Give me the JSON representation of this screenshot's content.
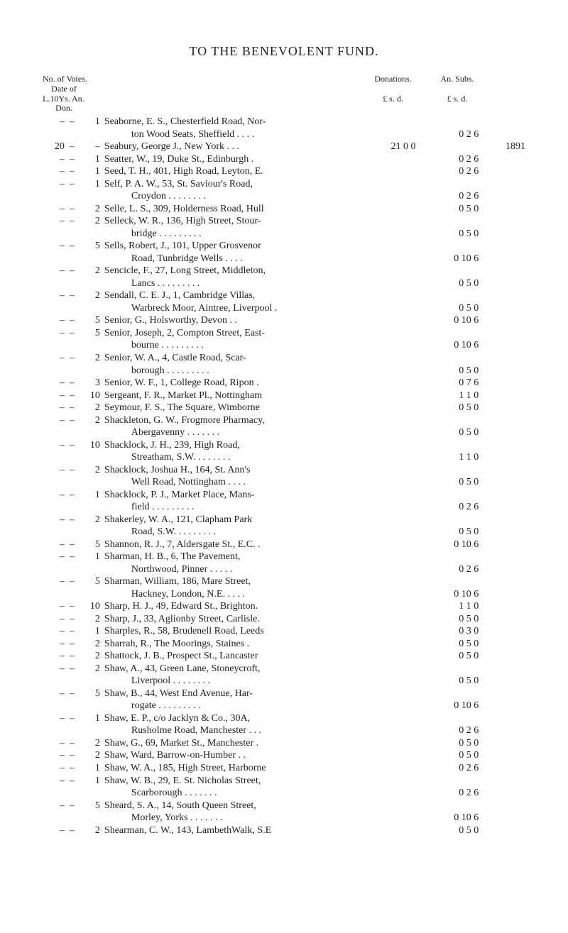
{
  "title": "TO THE BENEVOLENT FUND.",
  "headers": {
    "left_line1": "No. of Votes.",
    "left_line2": "L.10Ys. An.",
    "donations_line1": "Donations.",
    "donations_line2": "£  s.  d.",
    "subs_line1": "An. Subs.",
    "subs_line2": "£  s.  d.",
    "date_line1": "Date of",
    "date_line2": "Don."
  },
  "rows": [
    {
      "v": "–",
      "y": "–",
      "an": "1",
      "name": "Seaborne, E. S., Chesterfield Road, Nor-",
      "cont": "ton Wood Seats, Sheffield . . . .",
      "don": "",
      "subs": "0  2  6",
      "date": ""
    },
    {
      "v": "20",
      "y": "–",
      "an": "–",
      "name": "Seabury, George J., New York  .  .  .",
      "cont": "",
      "don": "21  0  0",
      "subs": "",
      "date": "1891"
    },
    {
      "v": "–",
      "y": "–",
      "an": "1",
      "name": "Seatter, W., 19, Duke St., Edinburgh .",
      "cont": "",
      "don": "",
      "subs": "0  2  6",
      "date": ""
    },
    {
      "v": "–",
      "y": "–",
      "an": "1",
      "name": "Seed, T. H., 401, High Road, Leyton, E.",
      "cont": "",
      "don": "",
      "subs": "0  2  6",
      "date": ""
    },
    {
      "v": "–",
      "y": "–",
      "an": "1",
      "name": "Self, P. A. W., 53, St. Saviour's Road,",
      "cont": "Croydon  . . . . . . . .",
      "don": "",
      "subs": "0  2  6",
      "date": ""
    },
    {
      "v": "–",
      "y": "–",
      "an": "2",
      "name": "Selle, L. S., 309, Holderness Road, Hull",
      "cont": "",
      "don": "",
      "subs": "0  5  0",
      "date": ""
    },
    {
      "v": "–",
      "y": "–",
      "an": "2",
      "name": "Selleck, W. R., 136, High Street, Stour-",
      "cont": "bridge  . . . . . . . . .",
      "don": "",
      "subs": "0  5  0",
      "date": ""
    },
    {
      "v": "–",
      "y": "–",
      "an": "5",
      "name": "Sells, Robert, J., 101, Upper Grosvenor",
      "cont": "Road, Tunbridge Wells  . . . .",
      "don": "",
      "subs": "0 10  6",
      "date": ""
    },
    {
      "v": "–",
      "y": "–",
      "an": "2",
      "name": "Sencicle, F., 27, Long Street, Middleton,",
      "cont": "Lancs  . . . . . . . . .",
      "don": "",
      "subs": "0  5  0",
      "date": ""
    },
    {
      "v": "–",
      "y": "–",
      "an": "2",
      "name": "Sendall, C. E. J., 1, Cambridge Villas,",
      "cont": "Warbreck Moor, Aintree, Liverpool .",
      "don": "",
      "subs": "0  5  0",
      "date": ""
    },
    {
      "v": "–",
      "y": "–",
      "an": "5",
      "name": "Senior, G., Holsworthy, Devon  .  .",
      "cont": "",
      "don": "",
      "subs": "0 10  6",
      "date": ""
    },
    {
      "v": "–",
      "y": "–",
      "an": "5",
      "name": "Senior, Joseph, 2, Compton Street, East-",
      "cont": "bourne  . . . . . . . . .",
      "don": "",
      "subs": "0 10  6",
      "date": ""
    },
    {
      "v": "–",
      "y": "–",
      "an": "2",
      "name": "Senior, W. A., 4, Castle Road, Scar-",
      "cont": "borough . . . . . . . . .",
      "don": "",
      "subs": "0  5  0",
      "date": ""
    },
    {
      "v": "–",
      "y": "–",
      "an": "3",
      "name": "Senior, W. F., 1, College Road, Ripon  .",
      "cont": "",
      "don": "",
      "subs": "0  7  6",
      "date": ""
    },
    {
      "v": "–",
      "y": "–",
      "an": "10",
      "name": "Sergeant, F. R., Market Pl., Nottingham",
      "cont": "",
      "don": "",
      "subs": "1  1  0",
      "date": ""
    },
    {
      "v": "–",
      "y": "–",
      "an": "2",
      "name": "Seymour, F. S., The Square, Wimborne",
      "cont": "",
      "don": "",
      "subs": "0  5  0",
      "date": ""
    },
    {
      "v": "–",
      "y": "–",
      "an": "2",
      "name": "Shackleton, G. W., Frogmore Pharmacy,",
      "cont": "Abergavenny  . . . . . . .",
      "don": "",
      "subs": "0  5  0",
      "date": ""
    },
    {
      "v": "–",
      "y": "–",
      "an": "10",
      "name": "Shacklock, J. H., 239, High Road,",
      "cont": "Streatham, S.W. . . . . . . .",
      "don": "",
      "subs": "1  1  0",
      "date": ""
    },
    {
      "v": "–",
      "y": "–",
      "an": "2",
      "name": "Shacklock, Joshua H., 164, St. Ann's",
      "cont": "Well Road, Nottingham  . . . .",
      "don": "",
      "subs": "0  5  0",
      "date": ""
    },
    {
      "v": "–",
      "y": "–",
      "an": "1",
      "name": "Shacklock, P. J., Market Place, Mans-",
      "cont": "field  . . . . . . . . .",
      "don": "",
      "subs": "0  2  6",
      "date": ""
    },
    {
      "v": "–",
      "y": "–",
      "an": "2",
      "name": "Shakerley, W. A., 121, Clapham Park",
      "cont": "Road, S.W.  . . . . . . . .",
      "don": "",
      "subs": "0  5  0",
      "date": ""
    },
    {
      "v": "–",
      "y": "–",
      "an": "5",
      "name": "Shannon, R. J., 7, Aldersgate St., E.C.  .",
      "cont": "",
      "don": "",
      "subs": "0 10  6",
      "date": ""
    },
    {
      "v": "–",
      "y": "–",
      "an": "1",
      "name": "Sharman, H. B., 6, The Pavement,",
      "cont": "Northwood, Pinner  . . . . .",
      "don": "",
      "subs": "0  2  6",
      "date": ""
    },
    {
      "v": "–",
      "y": "–",
      "an": "5",
      "name": "Sharman, William, 186, Mare Street,",
      "cont": "Hackney, London, N.E.  . . . .",
      "don": "",
      "subs": "0 10  6",
      "date": ""
    },
    {
      "v": "–",
      "y": "–",
      "an": "10",
      "name": "Sharp, H. J., 49, Edward St., Brighton.",
      "cont": "",
      "don": "",
      "subs": "1  1  0",
      "date": ""
    },
    {
      "v": "–",
      "y": "–",
      "an": "2",
      "name": "Sharp, J., 33, Aglionby Street, Carlisle.",
      "cont": "",
      "don": "",
      "subs": "0  5  0",
      "date": ""
    },
    {
      "v": "–",
      "y": "–",
      "an": "1",
      "name": "Sharples, R., 58, Brudenell Road, Leeds",
      "cont": "",
      "don": "",
      "subs": "0  3  0",
      "date": ""
    },
    {
      "v": "–",
      "y": "–",
      "an": "2",
      "name": "Sharrah, R., The Moorings, Staines  .",
      "cont": "",
      "don": "",
      "subs": "0  5  0",
      "date": ""
    },
    {
      "v": "–",
      "y": "–",
      "an": "2",
      "name": "Shattock, J. B., Prospect St., Lancaster",
      "cont": "",
      "don": "",
      "subs": "0  5  0",
      "date": ""
    },
    {
      "v": "–",
      "y": "–",
      "an": "2",
      "name": "Shaw, A., 43, Green Lane, Stoneycroft,",
      "cont": "Liverpool  . . . . . . . .",
      "don": "",
      "subs": "0  5  0",
      "date": ""
    },
    {
      "v": "–",
      "y": "–",
      "an": "5",
      "name": "Shaw, B., 44, West End Avenue, Har-",
      "cont": "rogate  . . . . . . . . .",
      "don": "",
      "subs": "0 10  6",
      "date": ""
    },
    {
      "v": "–",
      "y": "–",
      "an": "1",
      "name": "Shaw, E. P., c/o Jacklyn & Co., 30A,",
      "cont": "Rusholme Road, Manchester . . .",
      "don": "",
      "subs": "0  2  6",
      "date": ""
    },
    {
      "v": "–",
      "y": "–",
      "an": "2",
      "name": "Shaw, G., 69, Market St., Manchester  .",
      "cont": "",
      "don": "",
      "subs": "0  5  0",
      "date": ""
    },
    {
      "v": "–",
      "y": "–",
      "an": "2",
      "name": "Shaw, Ward, Barrow-on-Humber  .  .",
      "cont": "",
      "don": "",
      "subs": "0  5  0",
      "date": ""
    },
    {
      "v": "–",
      "y": "–",
      "an": "1",
      "name": "Shaw, W. A., 185, High Street, Harborne",
      "cont": "",
      "don": "",
      "subs": "0  2  6",
      "date": ""
    },
    {
      "v": "–",
      "y": "–",
      "an": "1",
      "name": "Shaw, W. B., 29, E. St. Nicholas Street,",
      "cont": "Scarborough  . . . . . . .",
      "don": "",
      "subs": "0  2  6",
      "date": ""
    },
    {
      "v": "–",
      "y": "–",
      "an": "5",
      "name": "Sheard, S. A., 14, South Queen Street,",
      "cont": "Morley, Yorks . . . . . . .",
      "don": "",
      "subs": "0 10  6",
      "date": ""
    },
    {
      "v": "–",
      "y": "–",
      "an": "2",
      "name": "Shearman, C. W., 143, LambethWalk, S.E",
      "cont": "",
      "don": "",
      "subs": "0  5  0",
      "date": ""
    }
  ]
}
